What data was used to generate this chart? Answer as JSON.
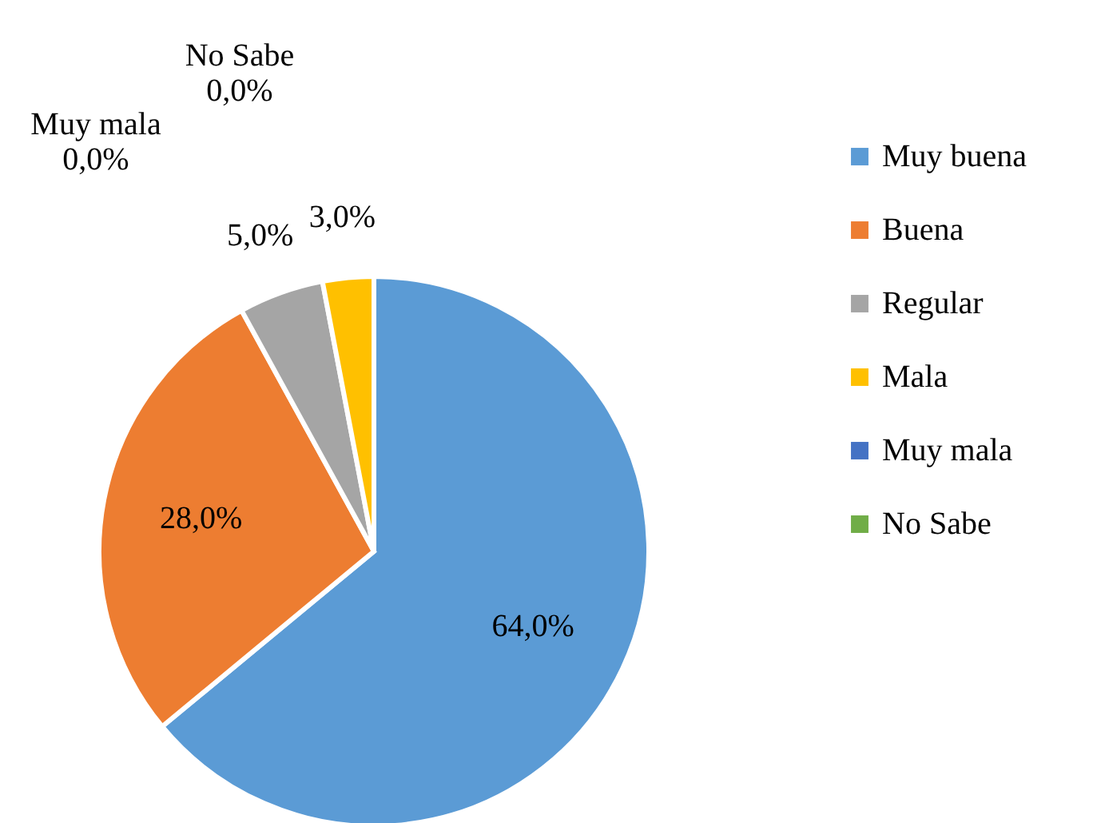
{
  "chart_data": {
    "type": "pie",
    "categories": [
      "Muy buena",
      "Buena",
      "Regular",
      "Mala",
      "Muy mala",
      "No Sabe"
    ],
    "values": [
      64,
      28,
      5,
      3,
      0,
      0
    ],
    "colors": [
      "#5b9bd5",
      "#ed7d31",
      "#a5a5a5",
      "#ffc000",
      "#4472c4",
      "#70ad47"
    ],
    "value_labels": [
      "64,0%",
      "28,0%",
      "5,0%",
      "3,0%",
      "Muy mala\n0,0%",
      "No Sabe\n0,0%"
    ],
    "legend": "right"
  }
}
